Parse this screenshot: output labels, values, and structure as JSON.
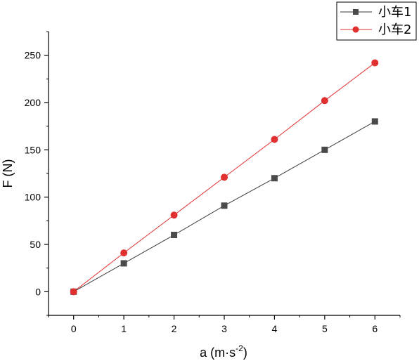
{
  "chart_data": {
    "type": "line",
    "title": "",
    "xlabel": "a (m·s",
    "xlabel_sup": "-2",
    "xlabel_close": ")",
    "ylabel": "F (N)",
    "xlim": [
      -0.5,
      6.5
    ],
    "ylim": [
      -25,
      275
    ],
    "xticks": [
      0,
      1,
      2,
      3,
      4,
      5,
      6
    ],
    "yticks": [
      0,
      50,
      100,
      150,
      200,
      250
    ],
    "grid": false,
    "legend_position": "top-right",
    "series": [
      {
        "name": "小车1",
        "color": "#3a3a3a",
        "marker": "square",
        "x": [
          0,
          1,
          2,
          3,
          4,
          5,
          6
        ],
        "values": [
          0,
          30,
          60,
          91,
          120,
          150,
          180
        ]
      },
      {
        "name": "小车2",
        "color": "#e03030",
        "marker": "circle",
        "x": [
          0,
          1,
          2,
          3,
          4,
          5,
          6
        ],
        "values": [
          0,
          41,
          81,
          121,
          161,
          202,
          242
        ]
      }
    ]
  }
}
